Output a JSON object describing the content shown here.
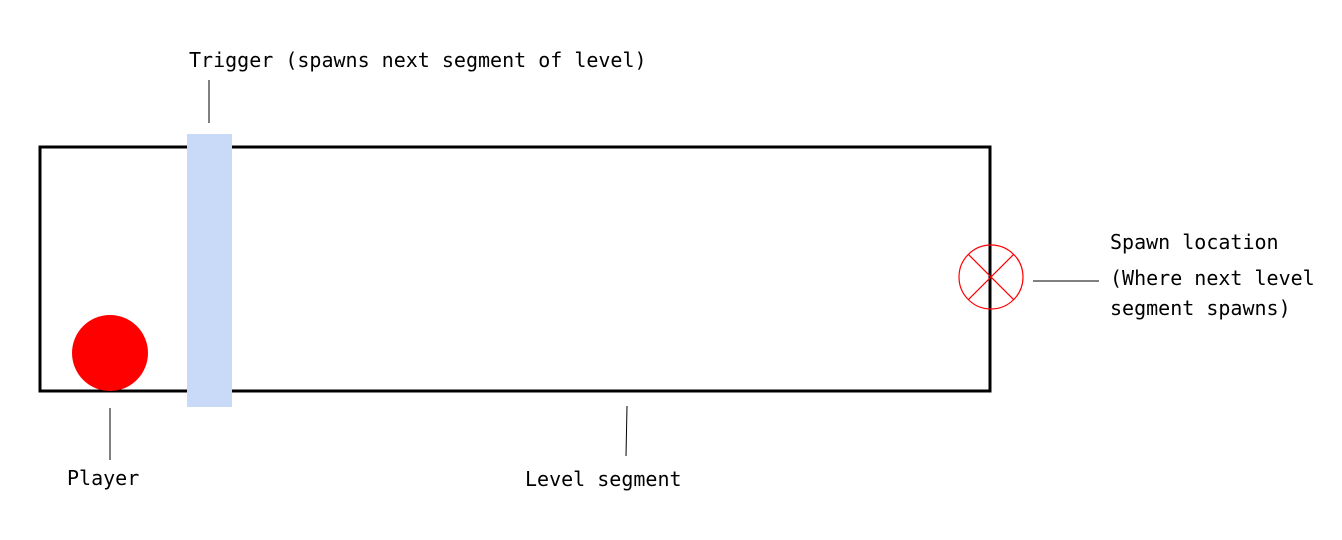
{
  "labels": {
    "trigger": "Trigger (spawns next segment of level)",
    "player": "Player",
    "level_segment": "Level segment",
    "spawn_location": "Spawn location",
    "spawn_note_line1": "(Where next level",
    "spawn_note_line2": "segment spawns)"
  },
  "colors": {
    "outline": "#000000",
    "trigger_fill": "#c9daf8",
    "player_fill": "#ff0000",
    "spawn_marker": "#ff0000",
    "leader_line": "#000000"
  }
}
